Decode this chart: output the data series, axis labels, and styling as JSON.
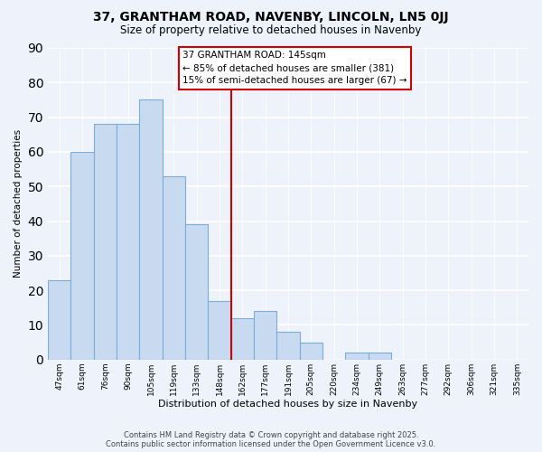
{
  "title": "37, GRANTHAM ROAD, NAVENBY, LINCOLN, LN5 0JJ",
  "subtitle": "Size of property relative to detached houses in Navenby",
  "xlabel": "Distribution of detached houses by size in Navenby",
  "ylabel": "Number of detached properties",
  "categories": [
    "47sqm",
    "61sqm",
    "76sqm",
    "90sqm",
    "105sqm",
    "119sqm",
    "133sqm",
    "148sqm",
    "162sqm",
    "177sqm",
    "191sqm",
    "205sqm",
    "220sqm",
    "234sqm",
    "249sqm",
    "263sqm",
    "277sqm",
    "292sqm",
    "306sqm",
    "321sqm",
    "335sqm"
  ],
  "values": [
    23,
    60,
    68,
    68,
    75,
    53,
    39,
    17,
    12,
    14,
    8,
    5,
    0,
    2,
    2,
    0,
    0,
    0,
    0,
    0,
    0
  ],
  "bar_color": "#c8daf0",
  "bar_edge_color": "#7aaed6",
  "ref_line_index": 7,
  "reference_line_color": "#cc0000",
  "annotation_line1": "37 GRANTHAM ROAD: 145sqm",
  "annotation_line2": "← 85% of detached houses are smaller (381)",
  "annotation_line3": "15% of semi-detached houses are larger (67) →",
  "ylim": [
    0,
    90
  ],
  "yticks": [
    0,
    10,
    20,
    30,
    40,
    50,
    60,
    70,
    80,
    90
  ],
  "background_color": "#eef2fa",
  "grid_color": "#ffffff",
  "footer_line1": "Contains HM Land Registry data © Crown copyright and database right 2025.",
  "footer_line2": "Contains public sector information licensed under the Open Government Licence v3.0."
}
